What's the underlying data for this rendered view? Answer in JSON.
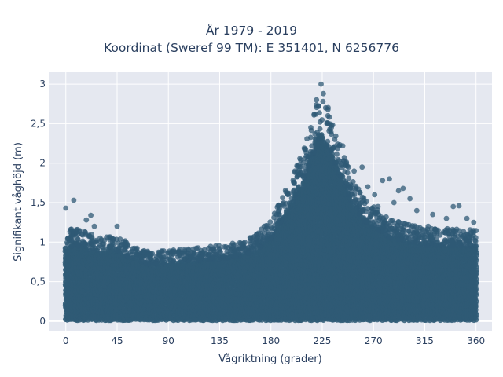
{
  "chart_data": {
    "type": "scatter",
    "title": "År 1979 - 2019",
    "subtitle": "Koordinat (Sweref 99 TM): E 351401, N 6256776",
    "xlabel": "Vågriktning (grader)",
    "ylabel": "Signifikant våghöjd (m)",
    "xlim": [
      -15,
      374
    ],
    "ylim": [
      -0.13,
      3.15
    ],
    "xticks": [
      0,
      45,
      90,
      135,
      180,
      225,
      270,
      315,
      360
    ],
    "xtick_labels": [
      "0",
      "45",
      "90",
      "135",
      "180",
      "225",
      "270",
      "315",
      "360"
    ],
    "yticks": [
      0,
      0.5,
      1,
      1.5,
      2,
      2.5,
      3
    ],
    "ytick_labels": [
      "0",
      "0,5",
      "1",
      "1,5",
      "2",
      "2,5",
      "3"
    ],
    "grid": true,
    "marker_color": "#2f5a75",
    "background_color": "#e5e8f0",
    "grid_color": "#ffffff",
    "envelope": {
      "x": [
        0,
        5,
        10,
        20,
        30,
        40,
        45,
        60,
        75,
        90,
        105,
        120,
        135,
        150,
        165,
        180,
        190,
        200,
        210,
        215,
        220,
        225,
        230,
        235,
        240,
        250,
        260,
        270,
        285,
        300,
        315,
        330,
        345,
        360
      ],
      "y_max": [
        0.95,
        1.0,
        1.0,
        0.95,
        0.92,
        0.95,
        0.93,
        0.8,
        0.75,
        0.78,
        0.78,
        0.8,
        0.82,
        0.85,
        0.92,
        1.1,
        1.35,
        1.6,
        1.9,
        2.15,
        2.35,
        2.45,
        2.35,
        2.1,
        1.95,
        1.6,
        1.35,
        1.25,
        1.1,
        1.05,
        1.0,
        1.0,
        1.0,
        1.0
      ]
    },
    "outliers": [
      {
        "x": 0,
        "y": 1.43
      },
      {
        "x": 7,
        "y": 1.53
      },
      {
        "x": 18,
        "y": 1.28
      },
      {
        "x": 22,
        "y": 1.34
      },
      {
        "x": 25,
        "y": 1.2
      },
      {
        "x": 45,
        "y": 1.2
      },
      {
        "x": 40,
        "y": 1.05
      },
      {
        "x": 2,
        "y": 1.05
      },
      {
        "x": 14,
        "y": 1.1
      },
      {
        "x": 95,
        "y": 0.88
      },
      {
        "x": 160,
        "y": 0.93
      },
      {
        "x": 187,
        "y": 1.4
      },
      {
        "x": 195,
        "y": 1.6
      },
      {
        "x": 201,
        "y": 1.9
      },
      {
        "x": 206,
        "y": 1.88
      },
      {
        "x": 213,
        "y": 2.08
      },
      {
        "x": 215,
        "y": 2.45
      },
      {
        "x": 218,
        "y": 2.62
      },
      {
        "x": 220,
        "y": 2.8
      },
      {
        "x": 224,
        "y": 3.0
      },
      {
        "x": 226,
        "y": 2.88
      },
      {
        "x": 222,
        "y": 2.72
      },
      {
        "x": 228,
        "y": 2.7
      },
      {
        "x": 230,
        "y": 2.6
      },
      {
        "x": 233,
        "y": 2.45
      },
      {
        "x": 236,
        "y": 2.3
      },
      {
        "x": 240,
        "y": 2.22
      },
      {
        "x": 243,
        "y": 2.22
      },
      {
        "x": 248,
        "y": 1.95
      },
      {
        "x": 253,
        "y": 1.9
      },
      {
        "x": 260,
        "y": 1.95
      },
      {
        "x": 265,
        "y": 1.7
      },
      {
        "x": 271,
        "y": 1.6
      },
      {
        "x": 278,
        "y": 1.78
      },
      {
        "x": 284,
        "y": 1.8
      },
      {
        "x": 292,
        "y": 1.65
      },
      {
        "x": 296,
        "y": 1.68
      },
      {
        "x": 302,
        "y": 1.55
      },
      {
        "x": 308,
        "y": 1.4
      },
      {
        "x": 322,
        "y": 1.35
      },
      {
        "x": 334,
        "y": 1.3
      },
      {
        "x": 340,
        "y": 1.45
      },
      {
        "x": 345,
        "y": 1.46
      },
      {
        "x": 352,
        "y": 1.3
      },
      {
        "x": 358,
        "y": 1.25
      },
      {
        "x": 318,
        "y": 1.2
      },
      {
        "x": 288,
        "y": 1.5
      },
      {
        "x": 274,
        "y": 1.45
      }
    ]
  }
}
